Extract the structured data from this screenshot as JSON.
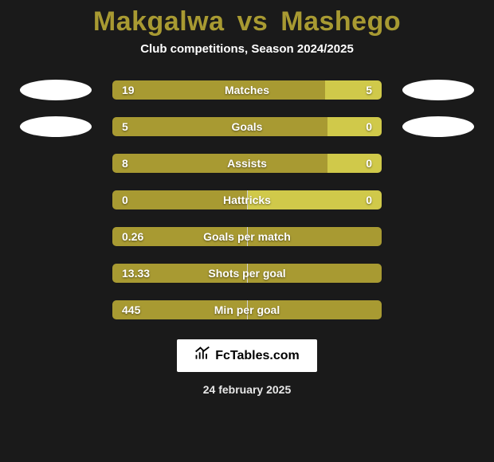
{
  "title": {
    "player1": "Makgalwa",
    "vs": "vs",
    "player2": "Mashego",
    "color": "#a89a32"
  },
  "subtitle": "Club competitions, Season 2024/2025",
  "colors": {
    "left_bar": "#a89a32",
    "right_bar": "#d0c94a",
    "bar_bg": "#2a2a2a",
    "page_bg": "#1a1a1a",
    "pill": "#ffffff",
    "divider": "#d1d1d1"
  },
  "rows": [
    {
      "label": "Matches",
      "left": "19",
      "right": "5",
      "left_pct": 79,
      "right_pct": 21,
      "full_left": false,
      "pill": true,
      "divider_center": false
    },
    {
      "label": "Goals",
      "left": "5",
      "right": "0",
      "left_pct": 80,
      "right_pct": 20,
      "full_left": false,
      "pill": true,
      "divider_center": false
    },
    {
      "label": "Assists",
      "left": "8",
      "right": "0",
      "left_pct": 80,
      "right_pct": 20,
      "full_left": false,
      "pill": false,
      "divider_center": false
    },
    {
      "label": "Hattricks",
      "left": "0",
      "right": "0",
      "left_pct": 50,
      "right_pct": 50,
      "full_left": false,
      "pill": false,
      "divider_center": true
    },
    {
      "label": "Goals per match",
      "left": "0.26",
      "right": "",
      "left_pct": 100,
      "right_pct": 0,
      "full_left": true,
      "pill": false,
      "divider_center": true
    },
    {
      "label": "Shots per goal",
      "left": "13.33",
      "right": "",
      "left_pct": 100,
      "right_pct": 0,
      "full_left": true,
      "pill": false,
      "divider_center": true
    },
    {
      "label": "Min per goal",
      "left": "445",
      "right": "",
      "left_pct": 100,
      "right_pct": 0,
      "full_left": true,
      "pill": false,
      "divider_center": true
    }
  ],
  "branding": {
    "label": "FcTables.com"
  },
  "date": "24 february 2025",
  "typography": {
    "title_fontsize": 34,
    "subtitle_fontsize": 15,
    "bar_label_fontsize": 14,
    "stat_value_fontsize": 14,
    "footer_fontsize": 14
  }
}
